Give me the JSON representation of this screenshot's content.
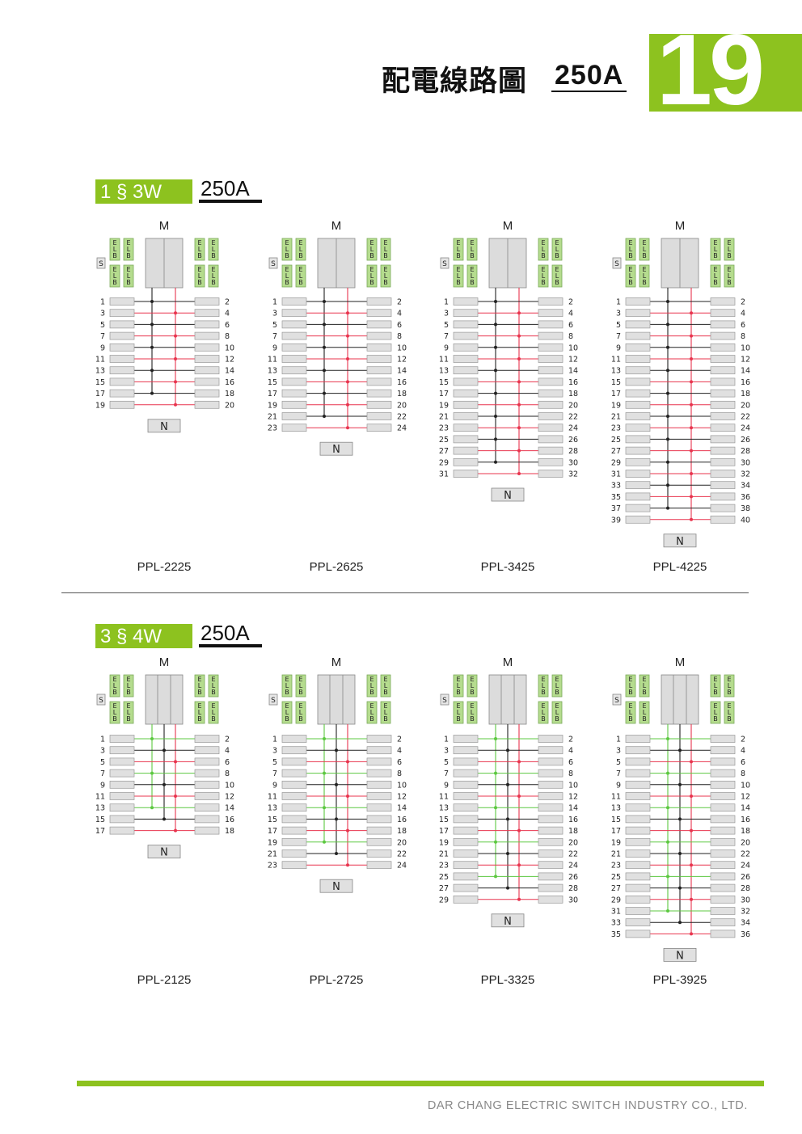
{
  "header": {
    "title": "配電線路圖",
    "ampere": "250A",
    "page_number": "19"
  },
  "colors": {
    "accent": "#8dc21f",
    "phase_black": "#222222",
    "phase_red": "#e8344e",
    "phase_green": "#5cc840",
    "breaker": "#e0e0e0",
    "elb": "#b5dc8e"
  },
  "labels": {
    "main": "M",
    "neutral": "N",
    "spare": "S",
    "elb": [
      "E",
      "L",
      "B"
    ]
  },
  "sections": [
    {
      "tag": "1 § 3W",
      "ampere": "250A",
      "phase": "1P3W",
      "panels": [
        {
          "model": "PPL-2225",
          "left": [
            1,
            3,
            5,
            7,
            9,
            11,
            13,
            15,
            17,
            19
          ],
          "right": [
            2,
            4,
            6,
            8,
            10,
            12,
            14,
            16,
            18,
            20
          ]
        },
        {
          "model": "PPL-2625",
          "left": [
            1,
            3,
            5,
            7,
            9,
            11,
            13,
            15,
            17,
            19,
            21,
            23
          ],
          "right": [
            2,
            4,
            6,
            8,
            10,
            12,
            14,
            16,
            18,
            20,
            22,
            24
          ]
        },
        {
          "model": "PPL-3425",
          "left": [
            1,
            3,
            5,
            7,
            9,
            11,
            13,
            15,
            17,
            19,
            21,
            23,
            25,
            27,
            29,
            31
          ],
          "right": [
            2,
            4,
            6,
            8,
            10,
            12,
            14,
            16,
            18,
            20,
            22,
            24,
            26,
            28,
            30,
            32
          ]
        },
        {
          "model": "PPL-4225",
          "left": [
            1,
            3,
            5,
            7,
            9,
            11,
            13,
            15,
            17,
            19,
            21,
            23,
            25,
            27,
            29,
            31,
            33,
            35,
            37,
            39
          ],
          "right": [
            2,
            4,
            6,
            8,
            10,
            12,
            14,
            16,
            18,
            20,
            22,
            24,
            26,
            28,
            30,
            32,
            34,
            36,
            38,
            40
          ]
        }
      ]
    },
    {
      "tag": "3 § 4W",
      "ampere": "250A",
      "phase": "3P4W",
      "panels": [
        {
          "model": "PPL-2125",
          "left": [
            1,
            3,
            5,
            7,
            9,
            11,
            13,
            15,
            17
          ],
          "right": [
            2,
            4,
            6,
            8,
            10,
            12,
            14,
            16,
            18
          ]
        },
        {
          "model": "PPL-2725",
          "left": [
            1,
            3,
            5,
            7,
            9,
            11,
            13,
            15,
            17,
            19,
            21,
            23
          ],
          "right": [
            2,
            4,
            6,
            8,
            10,
            12,
            14,
            16,
            18,
            20,
            22,
            24
          ]
        },
        {
          "model": "PPL-3325",
          "left": [
            1,
            3,
            5,
            7,
            9,
            11,
            13,
            15,
            17,
            19,
            21,
            23,
            25,
            27,
            29
          ],
          "right": [
            2,
            4,
            6,
            8,
            10,
            12,
            14,
            16,
            18,
            20,
            22,
            24,
            26,
            28,
            30
          ]
        },
        {
          "model": "PPL-3925",
          "left": [
            1,
            3,
            5,
            7,
            9,
            11,
            13,
            15,
            17,
            19,
            21,
            23,
            25,
            27,
            29,
            31,
            33,
            35
          ],
          "right": [
            2,
            4,
            6,
            8,
            10,
            12,
            14,
            16,
            18,
            20,
            22,
            24,
            26,
            28,
            30,
            32,
            34,
            36
          ]
        }
      ]
    }
  ],
  "footer": {
    "company": "DAR CHANG ELECTRIC SWITCH INDUSTRY CO., LTD."
  }
}
